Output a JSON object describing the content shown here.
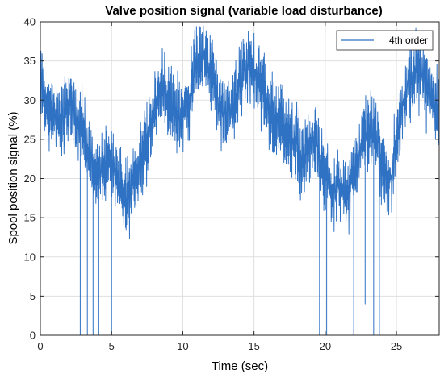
{
  "chart_data": {
    "type": "line",
    "title": "Valve position signal (variable load disturbance)",
    "xlabel": "Time (sec)",
    "ylabel": "Spool position signal (%)",
    "xlim": [
      0,
      28
    ],
    "ylim": [
      0,
      40
    ],
    "x_ticks": [
      0,
      5,
      10,
      15,
      20,
      25
    ],
    "y_ticks": [
      0,
      5,
      10,
      15,
      20,
      25,
      30,
      35,
      40
    ],
    "grid": true,
    "legend_position": "top-right",
    "colors": {
      "series": "#2f72c4",
      "axes": "#262626",
      "grid": "#dfdfdf"
    },
    "series": [
      {
        "name": "4th order",
        "x": [
          0,
          0.5,
          1,
          1.5,
          2,
          2.5,
          3,
          3.5,
          4,
          4.5,
          5,
          5.5,
          6,
          6.5,
          7,
          7.5,
          8,
          8.5,
          9,
          9.5,
          10,
          10.5,
          11,
          11.5,
          12,
          12.5,
          13,
          13.5,
          14,
          14.5,
          15,
          15.5,
          16,
          16.5,
          17,
          17.5,
          18,
          18.5,
          19,
          19.5,
          20,
          20.5,
          21,
          21.5,
          22,
          22.5,
          23,
          23.5,
          24,
          24.5,
          25,
          25.5,
          26,
          26.5,
          27,
          27.5,
          28
        ],
        "values": [
          33,
          29,
          28,
          27.5,
          29,
          28,
          26,
          23,
          21,
          21,
          23,
          19,
          17,
          19,
          22,
          25,
          29,
          32,
          30,
          28,
          28,
          31,
          35,
          36,
          33,
          30,
          28,
          29,
          32,
          34,
          34,
          32,
          29,
          28,
          27,
          25,
          24,
          22,
          25,
          24,
          20,
          18,
          19,
          18,
          21,
          24,
          26,
          26,
          22,
          19,
          24,
          30,
          33,
          34,
          32,
          30,
          28
        ],
        "spikes": [
          {
            "x": 2.8,
            "y": 0
          },
          {
            "x": 3.3,
            "y": 0
          },
          {
            "x": 3.7,
            "y": 0
          },
          {
            "x": 4.1,
            "y": 0
          },
          {
            "x": 5.0,
            "y": 0
          },
          {
            "x": 19.6,
            "y": 0
          },
          {
            "x": 20.1,
            "y": 0
          },
          {
            "x": 22.0,
            "y": 0
          },
          {
            "x": 22.8,
            "y": 4
          },
          {
            "x": 23.4,
            "y": 0
          },
          {
            "x": 23.8,
            "y": 0
          }
        ]
      }
    ]
  }
}
